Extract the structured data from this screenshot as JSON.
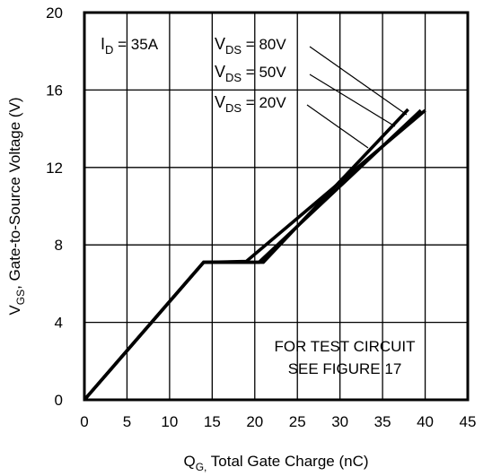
{
  "chart_data": {
    "type": "line",
    "xlabel_main": "Q",
    "xlabel_sub": "G,",
    "xlabel_rest": " Total Gate Charge (nC)",
    "ylabel_main": "V",
    "ylabel_sub": "GS",
    "ylabel_rest": ", Gate-to-Source Voltage (V)",
    "xlim": [
      0,
      45
    ],
    "ylim": [
      0,
      20
    ],
    "xticks": [
      0,
      5,
      10,
      15,
      20,
      25,
      30,
      35,
      40,
      45
    ],
    "yticks": [
      0,
      4,
      8,
      12,
      16,
      20
    ],
    "grid": true,
    "line_color": "#000000",
    "series": [
      {
        "name": "VDS = 80V",
        "x": [
          0,
          14,
          21,
          38
        ],
        "y": [
          0,
          7.1,
          7.1,
          15.0
        ]
      },
      {
        "name": "VDS = 50V",
        "x": [
          0,
          14,
          20.5,
          39.5
        ],
        "y": [
          0,
          7.1,
          7.1,
          14.95
        ]
      },
      {
        "name": "VDS = 20V",
        "x": [
          0,
          14,
          19,
          40
        ],
        "y": [
          0,
          7.1,
          7.15,
          14.95
        ]
      }
    ],
    "annotations": {
      "id": {
        "main": "I",
        "sub": "D",
        "rest": " = 35A"
      },
      "vds80": {
        "main": "V",
        "sub": "DS",
        "rest": " = 80V"
      },
      "vds50": {
        "main": "V",
        "sub": "DS",
        "rest": " = 50V"
      },
      "vds20": {
        "main": "V",
        "sub": "DS",
        "rest": " = 20V"
      },
      "test_circuit_line1": "FOR TEST CIRCUIT",
      "test_circuit_line2": "SEE FIGURE 17"
    }
  }
}
